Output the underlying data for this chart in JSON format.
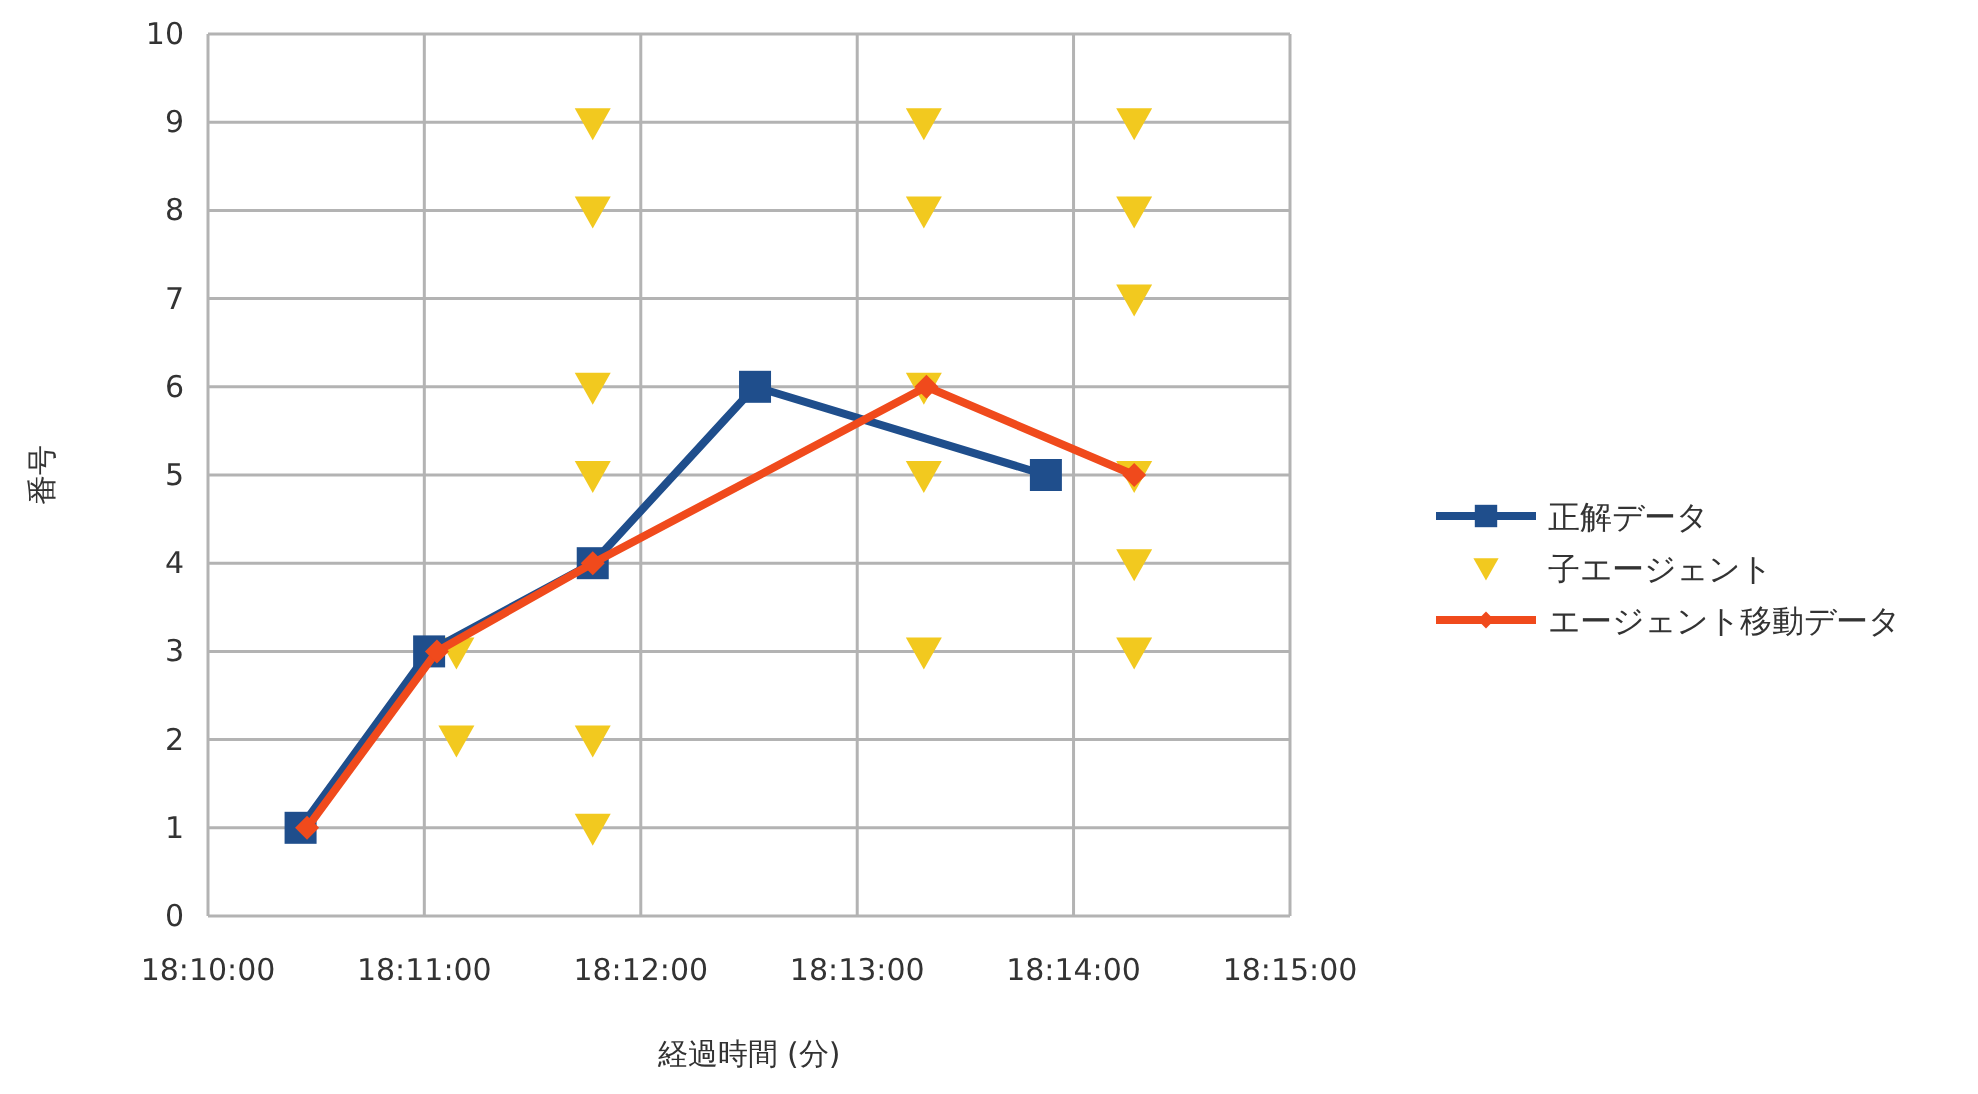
{
  "chart_data": {
    "type": "line",
    "xlabel": "経過時間 (分)",
    "ylabel": "番号",
    "xlim": [
      18.16667,
      18.25
    ],
    "xticks": [
      {
        "value": 18.16667,
        "label": "18:10:00"
      },
      {
        "value": 18.18333,
        "label": "18:11:00"
      },
      {
        "value": 18.2,
        "label": "18:12:00"
      },
      {
        "value": 18.21667,
        "label": "18:13:00"
      },
      {
        "value": 18.23333,
        "label": "18:14:00"
      },
      {
        "value": 18.25,
        "label": "18:15:00"
      }
    ],
    "ylim": [
      0,
      10
    ],
    "yticks": [
      0,
      1,
      2,
      3,
      4,
      5,
      6,
      7,
      8,
      9,
      10
    ],
    "grid": true,
    "legend": "right",
    "series": [
      {
        "name": "正解データ",
        "color": "#1f4e8c",
        "marker": "square",
        "x": [
          18.1738,
          18.1837,
          18.1963,
          18.2088,
          18.2312
        ],
        "values": [
          1,
          3,
          4,
          6,
          5
        ]
      },
      {
        "name": "子エージェント",
        "color": "#f2c91f",
        "type": "scatter",
        "marker": "triangle",
        "x": [
          18.1858,
          18.1858,
          18.1963,
          18.1963,
          18.1963,
          18.1963,
          18.1963,
          18.1963,
          18.2218,
          18.2218,
          18.2218,
          18.2218,
          18.2218,
          18.238,
          18.238,
          18.238,
          18.238,
          18.238,
          18.238
        ],
        "values": [
          3,
          2,
          9,
          8,
          6,
          5,
          2,
          1,
          9,
          8,
          6,
          5,
          3,
          9,
          8,
          7,
          5,
          4,
          3
        ]
      },
      {
        "name": "エージェント移動データ",
        "color": "#f04a1c",
        "marker": "diamond",
        "x": [
          18.1743,
          18.1843,
          18.1963,
          18.222,
          18.238
        ],
        "values": [
          1,
          3,
          4,
          6,
          5
        ]
      }
    ]
  }
}
